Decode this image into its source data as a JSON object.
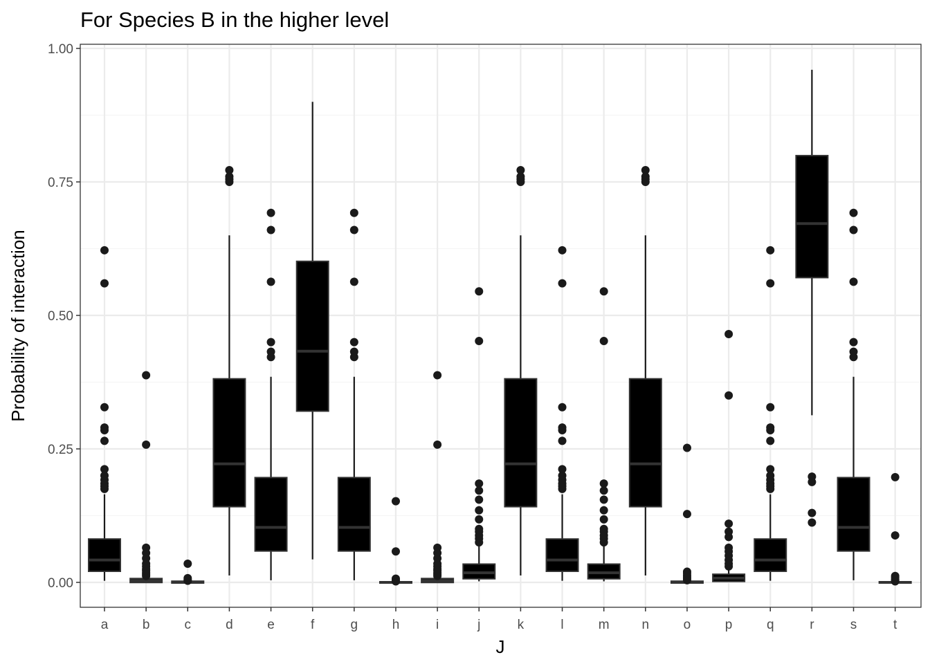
{
  "chart_data": {
    "type": "boxplot",
    "title": "For Species B in the higher level",
    "xlabel": "J",
    "ylabel": "Probability of interaction",
    "ylim": [
      0,
      1
    ],
    "yticks": [
      "0.00",
      "0.25",
      "0.50",
      "0.75",
      "1.00"
    ],
    "grid": true,
    "legend": "none",
    "colors": {
      "box_fill": "#000000",
      "median": "#333333",
      "whisker": "#1a1a1a",
      "outlier": "#1a1a1a",
      "grid_major": "#ebebeb",
      "grid_minor": "#f4f4f4",
      "panel_border": "#333333"
    },
    "categories": [
      "a",
      "b",
      "c",
      "d",
      "e",
      "f",
      "g",
      "h",
      "i",
      "j",
      "k",
      "l",
      "m",
      "n",
      "o",
      "p",
      "q",
      "r",
      "s",
      "t"
    ],
    "boxes": [
      {
        "category": "a",
        "min": 0.003,
        "q1": 0.022,
        "median": 0.042,
        "q3": 0.08,
        "max": 0.165,
        "outliers": [
          0.175,
          0.18,
          0.185,
          0.192,
          0.2,
          0.212,
          0.265,
          0.285,
          0.29,
          0.328,
          0.56,
          0.622
        ]
      },
      {
        "category": "b",
        "min": 0.0,
        "q1": 0.001,
        "median": 0.003,
        "q3": 0.006,
        "max": 0.01,
        "outliers": [
          0.012,
          0.015,
          0.018,
          0.022,
          0.025,
          0.03,
          0.035,
          0.045,
          0.055,
          0.065,
          0.258,
          0.388
        ]
      },
      {
        "category": "c",
        "min": 0.0,
        "q1": 0.0,
        "median": 0.0,
        "q3": 0.001,
        "max": 0.002,
        "outliers": [
          0.003,
          0.005,
          0.008,
          0.035
        ]
      },
      {
        "category": "d",
        "min": 0.013,
        "q1": 0.143,
        "median": 0.222,
        "q3": 0.38,
        "max": 0.65,
        "outliers": [
          0.75,
          0.755,
          0.76,
          0.772
        ]
      },
      {
        "category": "e",
        "min": 0.004,
        "q1": 0.06,
        "median": 0.103,
        "q3": 0.195,
        "max": 0.385,
        "outliers": [
          0.422,
          0.432,
          0.45,
          0.563,
          0.66,
          0.692
        ]
      },
      {
        "category": "f",
        "min": 0.043,
        "q1": 0.322,
        "median": 0.433,
        "q3": 0.6,
        "max": 0.9,
        "outliers": []
      },
      {
        "category": "g",
        "min": 0.004,
        "q1": 0.06,
        "median": 0.103,
        "q3": 0.195,
        "max": 0.385,
        "outliers": [
          0.422,
          0.432,
          0.45,
          0.563,
          0.66,
          0.692
        ]
      },
      {
        "category": "h",
        "min": 0.0,
        "q1": 0.0,
        "median": 0.0,
        "q3": 0.0,
        "max": 0.001,
        "outliers": [
          0.002,
          0.004,
          0.007,
          0.058,
          0.152
        ]
      },
      {
        "category": "i",
        "min": 0.0,
        "q1": 0.001,
        "median": 0.003,
        "q3": 0.006,
        "max": 0.01,
        "outliers": [
          0.012,
          0.015,
          0.018,
          0.022,
          0.025,
          0.03,
          0.035,
          0.045,
          0.055,
          0.065,
          0.258,
          0.388
        ]
      },
      {
        "category": "j",
        "min": 0.002,
        "q1": 0.008,
        "median": 0.018,
        "q3": 0.033,
        "max": 0.068,
        "outliers": [
          0.075,
          0.082,
          0.088,
          0.095,
          0.1,
          0.118,
          0.135,
          0.155,
          0.172,
          0.185,
          0.452,
          0.545
        ]
      },
      {
        "category": "k",
        "min": 0.013,
        "q1": 0.143,
        "median": 0.222,
        "q3": 0.38,
        "max": 0.65,
        "outliers": [
          0.75,
          0.755,
          0.76,
          0.772
        ]
      },
      {
        "category": "l",
        "min": 0.003,
        "q1": 0.022,
        "median": 0.042,
        "q3": 0.08,
        "max": 0.165,
        "outliers": [
          0.175,
          0.18,
          0.185,
          0.192,
          0.2,
          0.212,
          0.265,
          0.285,
          0.29,
          0.328,
          0.56,
          0.622
        ]
      },
      {
        "category": "m",
        "min": 0.002,
        "q1": 0.008,
        "median": 0.018,
        "q3": 0.033,
        "max": 0.068,
        "outliers": [
          0.075,
          0.082,
          0.088,
          0.095,
          0.1,
          0.118,
          0.135,
          0.155,
          0.172,
          0.185,
          0.452,
          0.545
        ]
      },
      {
        "category": "n",
        "min": 0.013,
        "q1": 0.143,
        "median": 0.222,
        "q3": 0.38,
        "max": 0.65,
        "outliers": [
          0.75,
          0.755,
          0.76,
          0.772
        ]
      },
      {
        "category": "o",
        "min": 0.0,
        "q1": 0.0,
        "median": 0.0,
        "q3": 0.001,
        "max": 0.002,
        "outliers": [
          0.004,
          0.007,
          0.01,
          0.013,
          0.017,
          0.02,
          0.128,
          0.252
        ]
      },
      {
        "category": "p",
        "min": 0.001,
        "q1": 0.003,
        "median": 0.008,
        "q3": 0.014,
        "max": 0.025,
        "outliers": [
          0.03,
          0.035,
          0.042,
          0.05,
          0.058,
          0.065,
          0.085,
          0.095,
          0.11,
          0.35,
          0.465
        ]
      },
      {
        "category": "q",
        "min": 0.003,
        "q1": 0.022,
        "median": 0.042,
        "q3": 0.08,
        "max": 0.165,
        "outliers": [
          0.175,
          0.18,
          0.185,
          0.192,
          0.2,
          0.212,
          0.265,
          0.285,
          0.29,
          0.328,
          0.56,
          0.622
        ]
      },
      {
        "category": "r",
        "min": 0.313,
        "q1": 0.572,
        "median": 0.672,
        "q3": 0.798,
        "max": 0.96,
        "outliers": [
          0.112,
          0.13,
          0.188,
          0.198
        ]
      },
      {
        "category": "s",
        "min": 0.004,
        "q1": 0.06,
        "median": 0.103,
        "q3": 0.195,
        "max": 0.385,
        "outliers": [
          0.422,
          0.432,
          0.45,
          0.563,
          0.66,
          0.692
        ]
      },
      {
        "category": "t",
        "min": 0.0,
        "q1": 0.0,
        "median": 0.0,
        "q3": 0.0,
        "max": 0.001,
        "outliers": [
          0.002,
          0.004,
          0.006,
          0.009,
          0.012,
          0.088,
          0.197
        ]
      }
    ]
  }
}
